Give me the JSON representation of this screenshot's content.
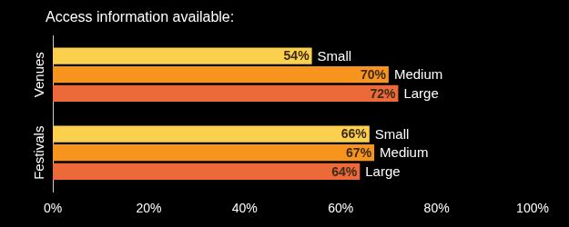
{
  "chart_data": {
    "type": "bar",
    "title": "Access information available:",
    "orientation": "horizontal",
    "categories": [
      "Venues",
      "Festivals"
    ],
    "series": [
      {
        "name": "Small",
        "color": "#fcd04f",
        "values": [
          54,
          66
        ],
        "value_labels": [
          "54%",
          "66%"
        ]
      },
      {
        "name": "Medium",
        "color": "#f7941e",
        "values": [
          70,
          67
        ],
        "value_labels": [
          "70%",
          "67%"
        ]
      },
      {
        "name": "Large",
        "color": "#ec6a3a",
        "values": [
          72,
          64
        ],
        "value_labels": [
          "72%",
          "64%"
        ]
      }
    ],
    "xlim": [
      0,
      100
    ],
    "xticks": [
      {
        "value": 0,
        "label": "0%"
      },
      {
        "value": 20,
        "label": "20%"
      },
      {
        "value": 40,
        "label": "40%"
      },
      {
        "value": 60,
        "label": "60%"
      },
      {
        "value": 80,
        "label": "80%"
      },
      {
        "value": 100,
        "label": "100%"
      }
    ],
    "grid": false,
    "data_labels": true
  }
}
